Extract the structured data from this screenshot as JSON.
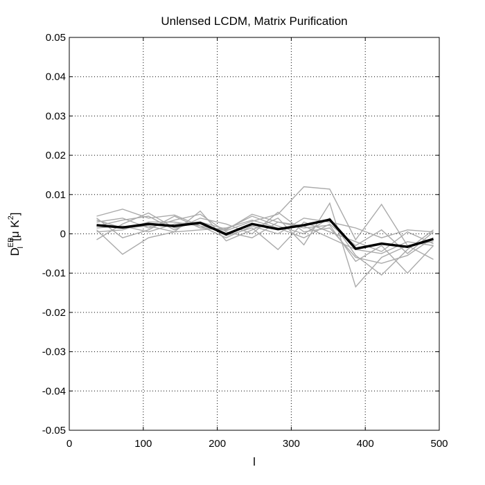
{
  "chart_data": {
    "type": "line",
    "title": "Unlensed LCDM, Matrix Purification",
    "xlabel": "l",
    "ylabel": {
      "base": "D",
      "sup": "EB",
      "sub": "l",
      "unit_open": "[μ K",
      "unit_sup": "2",
      "unit_close": "]"
    },
    "xlim": [
      0,
      500
    ],
    "ylim": [
      -0.05,
      0.05
    ],
    "xticks": [
      0,
      100,
      200,
      300,
      400,
      500
    ],
    "xtick_labels": [
      "0",
      "100",
      "200",
      "300",
      "400",
      "500"
    ],
    "yticks": [
      0.05,
      0.04,
      0.03,
      0.02,
      0.01,
      0,
      -0.01,
      -0.02,
      -0.03,
      -0.04,
      -0.05
    ],
    "ytick_labels": [
      "0.05",
      "0.04",
      "0.03",
      "0.02",
      "0.01",
      "0",
      "-0.01",
      "-0.02",
      "-0.03",
      "-0.04",
      "-0.05"
    ],
    "grid": true,
    "x": [
      37,
      72,
      107,
      142,
      177,
      212,
      247,
      282,
      317,
      352,
      387,
      422,
      457,
      492
    ],
    "series": [
      {
        "color": "#000000",
        "bold": true,
        "values": [
          0.0022,
          0.0016,
          0.0025,
          0.002,
          0.0028,
          -0.0001,
          0.0025,
          0.0012,
          0.0022,
          0.0036,
          -0.0038,
          -0.0025,
          -0.0033,
          -0.0013
        ]
      },
      {
        "color": "#aaaaaa",
        "bold": false,
        "values": [
          0.0045,
          0.0063,
          0.004,
          0.0048,
          0.002,
          0.0008,
          0.0032,
          0.005,
          0.012,
          0.0114,
          -0.0015,
          0.0075,
          -0.003,
          -0.002
        ]
      },
      {
        "color": "#aaaaaa",
        "bold": false,
        "values": [
          0.001,
          -0.0052,
          -0.001,
          0.0005,
          0.0058,
          -0.0018,
          0.001,
          0.004,
          -0.0028,
          0.0078,
          -0.0135,
          -0.006,
          -0.003,
          -0.0065
        ]
      },
      {
        "color": "#aaaaaa",
        "bold": false,
        "values": [
          -0.0015,
          0.0025,
          0.0053,
          0.0015,
          0.003,
          0.0012,
          0.0045,
          0.002,
          0.0,
          0.004,
          -0.0055,
          -0.0105,
          -0.004,
          0.001
        ]
      },
      {
        "color": "#aaaaaa",
        "bold": false,
        "values": [
          0.003,
          0.004,
          0.0015,
          0.0035,
          0.005,
          0.0005,
          -0.001,
          0.003,
          0.0015,
          0.0022,
          -0.007,
          -0.003,
          -0.01,
          -0.003
        ]
      },
      {
        "color": "#aaaaaa",
        "bold": false,
        "values": [
          0.0005,
          0.001,
          0.003,
          0.003,
          0.002,
          -0.001,
          0.002,
          0.0,
          0.004,
          0.003,
          0.0015,
          -0.001,
          0.001,
          0.0005
        ]
      },
      {
        "color": "#aaaaaa",
        "bold": false,
        "values": [
          0.004,
          -0.001,
          0.001,
          0.0045,
          0.0015,
          0.001,
          0.005,
          0.003,
          0.002,
          -0.001,
          -0.004,
          -0.005,
          -0.002,
          -0.003
        ]
      },
      {
        "color": "#aaaaaa",
        "bold": false,
        "values": [
          0.002,
          0.0035,
          0.0045,
          0.001,
          0.004,
          0.0025,
          0.0,
          0.0055,
          0.0005,
          0.0015,
          -0.006,
          -0.0075,
          -0.0055,
          -0.001
        ]
      },
      {
        "color": "#aaaaaa",
        "bold": false,
        "values": [
          0.0015,
          0.002,
          0.0005,
          0.0025,
          0.003,
          -0.0005,
          0.0015,
          -0.004,
          0.003,
          0.0005,
          -0.002,
          -0.0045,
          0.0005,
          -0.0025
        ]
      },
      {
        "color": "#aaaaaa",
        "bold": false,
        "values": [
          0.0035,
          0.0015,
          0.002,
          0.0005,
          0.001,
          0.0015,
          0.0035,
          0.0015,
          -0.001,
          0.0025,
          -0.003,
          0.001,
          -0.005,
          0.0005
        ]
      }
    ]
  }
}
